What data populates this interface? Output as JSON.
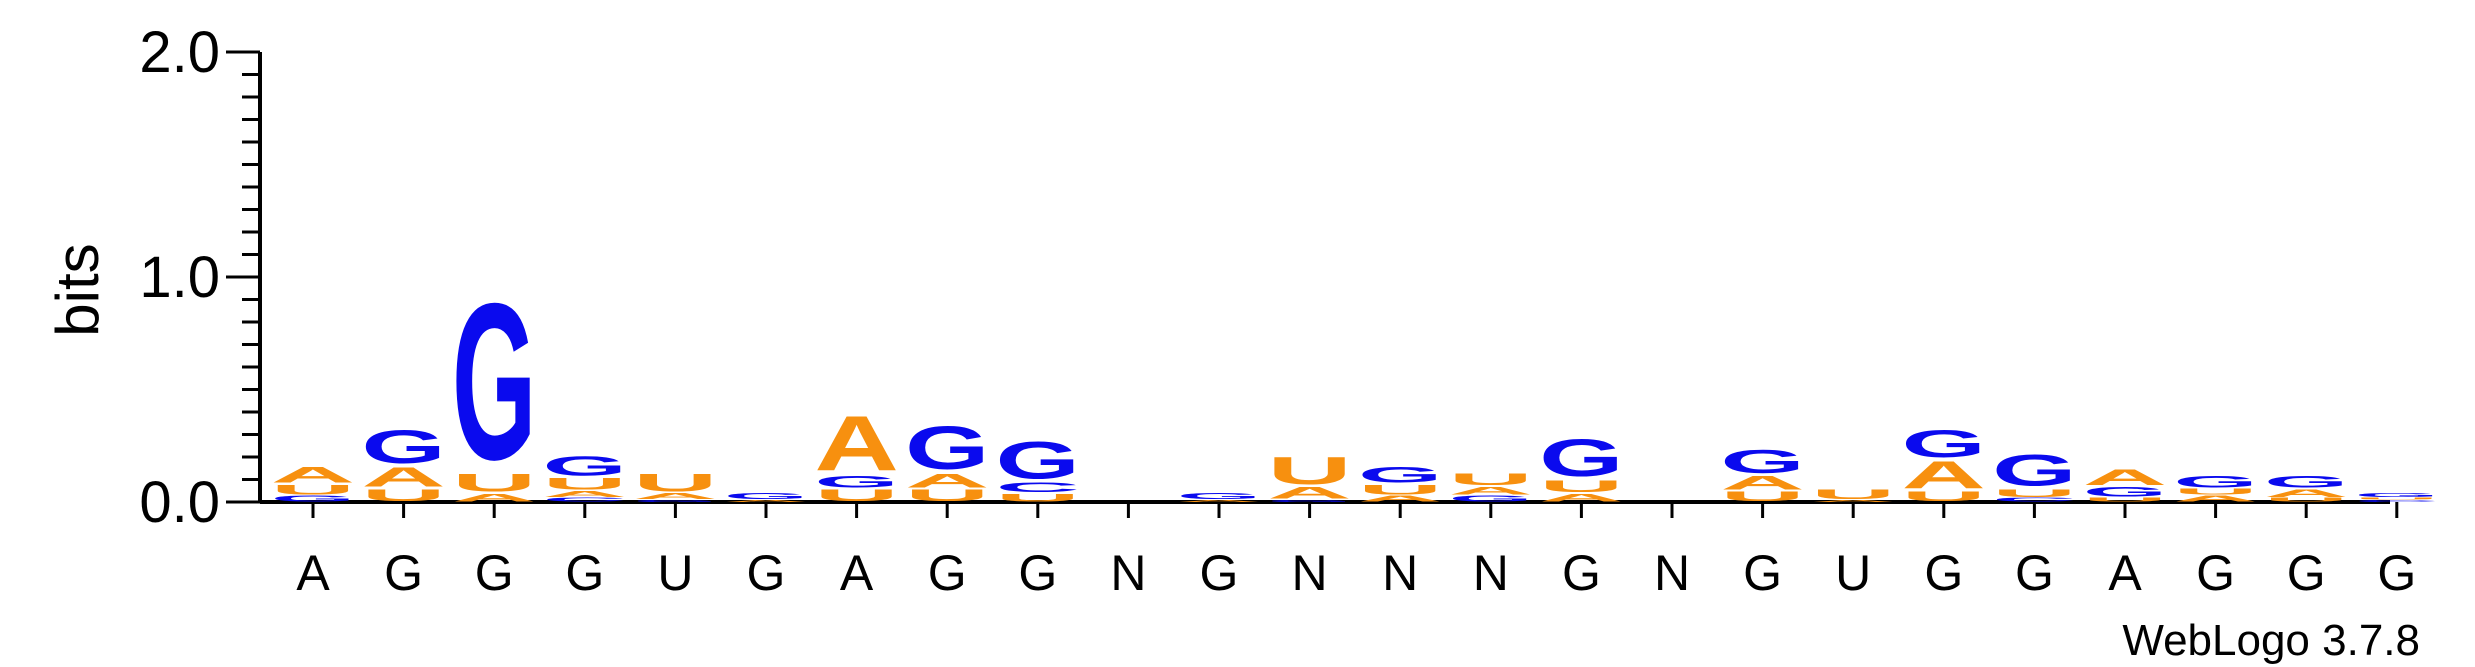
{
  "colors": {
    "A": "#f7900f",
    "U": "#f7900f",
    "G": "#0a0aee",
    "C": "#0a0aee",
    "axis": "#000000",
    "text": "#000000"
  },
  "chart_data": {
    "type": "sequence_logo",
    "ylabel": "bits",
    "ylim": [
      0,
      2.0
    ],
    "y_ticks": [
      "0.0",
      "1.0",
      "2.0"
    ],
    "footer": "WebLogo 3.7.8",
    "positions": [
      {
        "label": "A",
        "stack": [
          [
            "G",
            0.03
          ],
          [
            "U",
            0.05
          ],
          [
            "A",
            0.08
          ]
        ]
      },
      {
        "label": "G",
        "stack": [
          [
            "U",
            0.06
          ],
          [
            "A",
            0.1
          ],
          [
            "G",
            0.17
          ]
        ]
      },
      {
        "label": "G",
        "stack": [
          [
            "A",
            0.04
          ],
          [
            "U",
            0.09
          ],
          [
            "G",
            0.8
          ]
        ]
      },
      {
        "label": "G",
        "stack": [
          [
            "C",
            0.02
          ],
          [
            "A",
            0.03
          ],
          [
            "U",
            0.06
          ],
          [
            "G",
            0.1
          ]
        ]
      },
      {
        "label": "U",
        "stack": [
          [
            "G",
            0.01
          ],
          [
            "A",
            0.03
          ],
          [
            "U",
            0.09
          ]
        ]
      },
      {
        "label": "G",
        "stack": [
          [
            "A",
            0.01
          ],
          [
            "G",
            0.03
          ]
        ]
      },
      {
        "label": "A",
        "stack": [
          [
            "U",
            0.06
          ],
          [
            "G",
            0.06
          ],
          [
            "A",
            0.28
          ]
        ]
      },
      {
        "label": "G",
        "stack": [
          [
            "U",
            0.06
          ],
          [
            "A",
            0.07
          ],
          [
            "G",
            0.22
          ]
        ]
      },
      {
        "label": "G",
        "stack": [
          [
            "U",
            0.04
          ],
          [
            "C",
            0.05
          ],
          [
            "G",
            0.19
          ]
        ]
      },
      {
        "label": "N",
        "stack": []
      },
      {
        "label": "G",
        "stack": [
          [
            "A",
            0.01
          ],
          [
            "G",
            0.03
          ]
        ]
      },
      {
        "label": "N",
        "stack": [
          [
            "G",
            0.01
          ],
          [
            "A",
            0.06
          ],
          [
            "U",
            0.14
          ]
        ]
      },
      {
        "label": "N",
        "stack": [
          [
            "A",
            0.03
          ],
          [
            "U",
            0.05
          ],
          [
            "G",
            0.08
          ]
        ]
      },
      {
        "label": "N",
        "stack": [
          [
            "G",
            0.03
          ],
          [
            "A",
            0.04
          ],
          [
            "U",
            0.06
          ]
        ]
      },
      {
        "label": "G",
        "stack": [
          [
            "A",
            0.04
          ],
          [
            "U",
            0.06
          ],
          [
            "G",
            0.19
          ]
        ]
      },
      {
        "label": "N",
        "stack": []
      },
      {
        "label": "G",
        "stack": [
          [
            "U",
            0.05
          ],
          [
            "A",
            0.07
          ],
          [
            "G",
            0.12
          ]
        ]
      },
      {
        "label": "U",
        "stack": [
          [
            "A",
            0.01
          ],
          [
            "U",
            0.05
          ]
        ]
      },
      {
        "label": "G",
        "stack": [
          [
            "U",
            0.05
          ],
          [
            "A",
            0.14
          ],
          [
            "G",
            0.14
          ]
        ]
      },
      {
        "label": "G",
        "stack": [
          [
            "C",
            0.02
          ],
          [
            "U",
            0.04
          ],
          [
            "G",
            0.16
          ]
        ]
      },
      {
        "label": "A",
        "stack": [
          [
            "U",
            0.02
          ],
          [
            "G",
            0.05
          ],
          [
            "A",
            0.08
          ]
        ]
      },
      {
        "label": "G",
        "stack": [
          [
            "A",
            0.03
          ],
          [
            "U",
            0.03
          ],
          [
            "G",
            0.06
          ]
        ]
      },
      {
        "label": "G",
        "stack": [
          [
            "U",
            0.02
          ],
          [
            "A",
            0.04
          ],
          [
            "G",
            0.06
          ]
        ]
      },
      {
        "label": "G",
        "stack": [
          [
            "C",
            0.01
          ],
          [
            "U",
            0.01
          ],
          [
            "G",
            0.02
          ]
        ]
      }
    ]
  }
}
